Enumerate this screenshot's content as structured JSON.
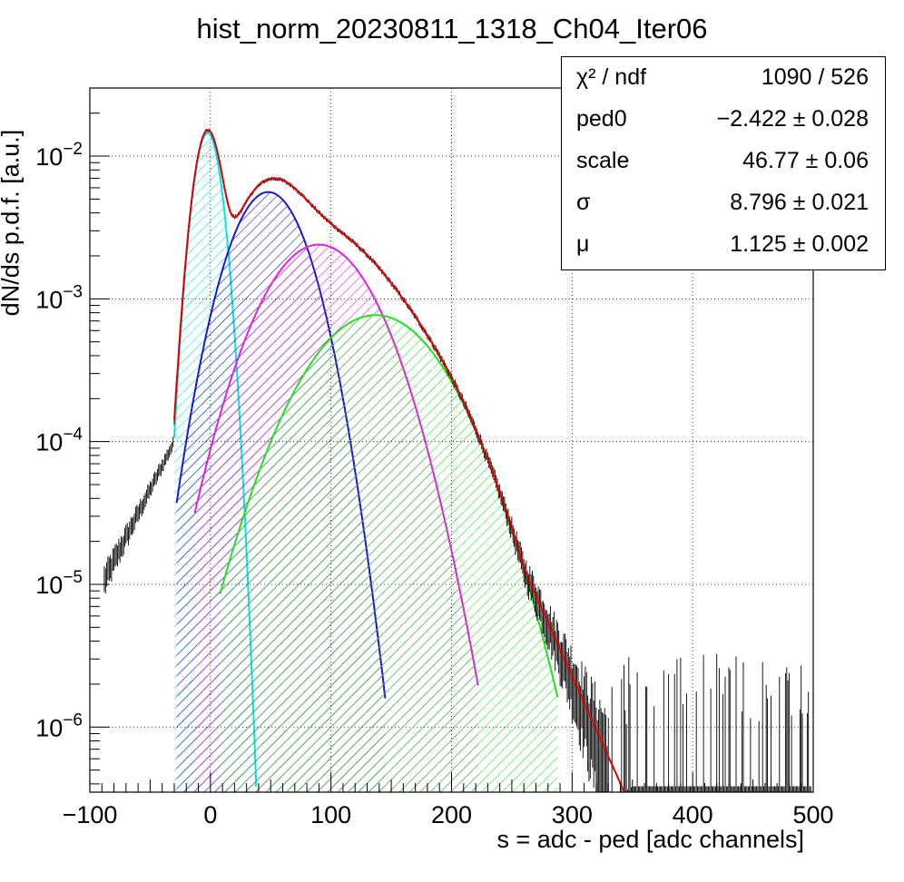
{
  "chart_data": {
    "type": "scatter",
    "title": "hist_norm_20230811_1318_Ch04_Iter06",
    "xlabel": "s = adc - ped [adc channels]",
    "ylabel": "dN/ds p.d.f. [a.u.]",
    "xlim": [
      -100,
      500
    ],
    "ylim": [
      3.5e-07,
      0.03
    ],
    "yscale": "log",
    "grid": true,
    "x_ticks": [
      "−100",
      "0",
      "100",
      "200",
      "300",
      "400",
      "500"
    ],
    "y_ticks": [
      {
        "base": "10",
        "exp": "−6",
        "value": 1e-06
      },
      {
        "base": "10",
        "exp": "−5",
        "value": 1e-05
      },
      {
        "base": "10",
        "exp": "−4",
        "value": 0.0001
      },
      {
        "base": "10",
        "exp": "−3",
        "value": 0.001
      },
      {
        "base": "10",
        "exp": "−2",
        "value": 0.01
      }
    ],
    "fit_params": {
      "ped0": -2.422,
      "scale": 46.77,
      "sigma": 8.796,
      "mu": 1.125
    },
    "components": [
      {
        "color": "#00e5e5",
        "peak_x": -2.4,
        "peak_y": 0.0145,
        "sigma": 8.8,
        "x_range": [
          -30,
          38
        ]
      },
      {
        "color": "#1a1ac8",
        "peak_x": 48,
        "peak_y": 0.0056,
        "sigma": 24,
        "x_range": [
          -28,
          145
        ]
      },
      {
        "color": "#e020e0",
        "peak_x": 90,
        "peak_y": 0.0024,
        "sigma": 35,
        "x_range": [
          -13,
          222
        ]
      },
      {
        "color": "#20e020",
        "peak_x": 137,
        "peak_y": 0.00077,
        "sigma": 43,
        "x_range": [
          8,
          288
        ]
      }
    ],
    "total_fit": {
      "color": "#dd0000",
      "x_range": [
        -30,
        440
      ],
      "tail_slope_per_100": -1.88
    },
    "histogram": {
      "color": "#000000",
      "x_range": [
        -88,
        498
      ],
      "note_bins": 600
    }
  },
  "stats_box": {
    "rows": [
      {
        "name": "χ² / ndf",
        "value": "1090 / 526"
      },
      {
        "name": "ped0",
        "value": "−2.422 ± 0.028"
      },
      {
        "name": "scale",
        "value": "46.77 ± 0.06"
      },
      {
        "name": "σ",
        "value": "8.796 ± 0.021"
      },
      {
        "name": "μ",
        "value": "1.125 ± 0.002"
      }
    ]
  },
  "colors": {
    "frame": "#000000",
    "grid": "#000000"
  }
}
